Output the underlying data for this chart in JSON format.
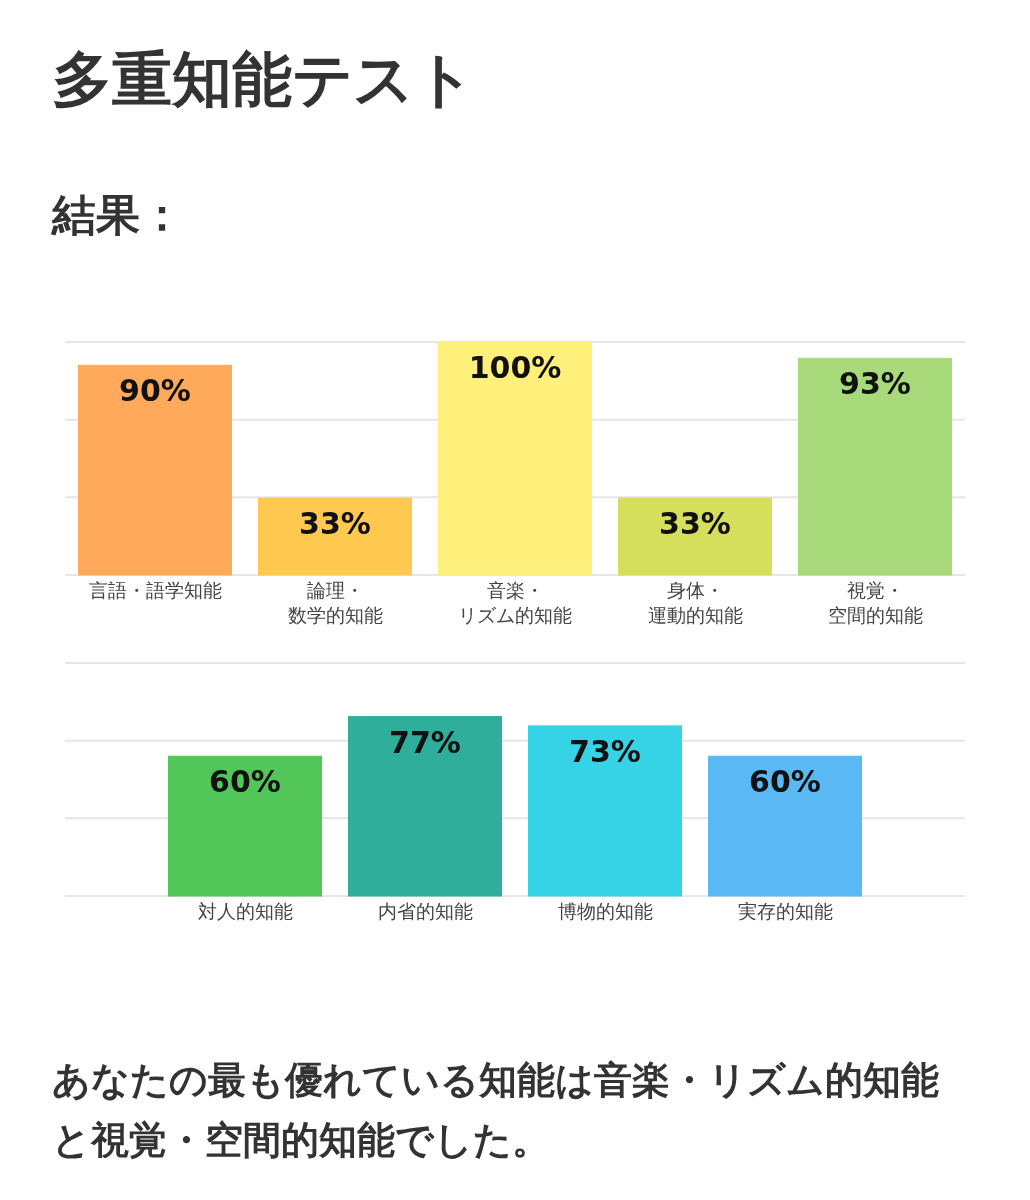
{
  "chart_data": [
    {
      "type": "bar",
      "title": "多重知能テスト",
      "subtitle": "結果：",
      "categories": [
        "言語・語学知能",
        "論理・数学的知能",
        "音楽・リズム的知能",
        "身体・運動的知能",
        "視覚・空間的知能"
      ],
      "values": [
        90,
        33,
        100,
        33,
        93
      ],
      "value_labels": [
        "90%",
        "33%",
        "100%",
        "33%",
        "93%"
      ],
      "colors": [
        "#ffa95a",
        "#ffc84e",
        "#fff07c",
        "#d6df5c",
        "#a8d97a"
      ],
      "ylim": [
        0,
        100
      ],
      "yticks": [
        {
          "value": 0,
          "label": null
        },
        {
          "value": 33.33,
          "label": null
        },
        {
          "value": 66.67,
          "label": null
        },
        {
          "value": 100,
          "label": null
        }
      ],
      "grid": "y",
      "tick_labels": "x"
    },
    {
      "type": "bar",
      "categories": [
        "対人的知能",
        "内省的知能",
        "博物的知能",
        "実存的知能"
      ],
      "values": [
        60,
        77,
        73,
        60
      ],
      "value_labels": [
        "60%",
        "77%",
        "73%",
        "60%"
      ],
      "colors": [
        "#52c659",
        "#2fae9c",
        "#36d3e6",
        "#5ab8f4"
      ],
      "ylim": [
        0,
        100
      ],
      "yticks": [
        {
          "value": 0,
          "label": null
        },
        {
          "value": 33.33,
          "label": null
        },
        {
          "value": 66.67,
          "label": null
        },
        {
          "value": 100,
          "label": null
        }
      ],
      "grid": "y",
      "tick_labels": "x",
      "annotations": [
        "あなたの最も優れている知能は音楽・リズム的知能と視覚・空間的知能でした。"
      ]
    }
  ]
}
